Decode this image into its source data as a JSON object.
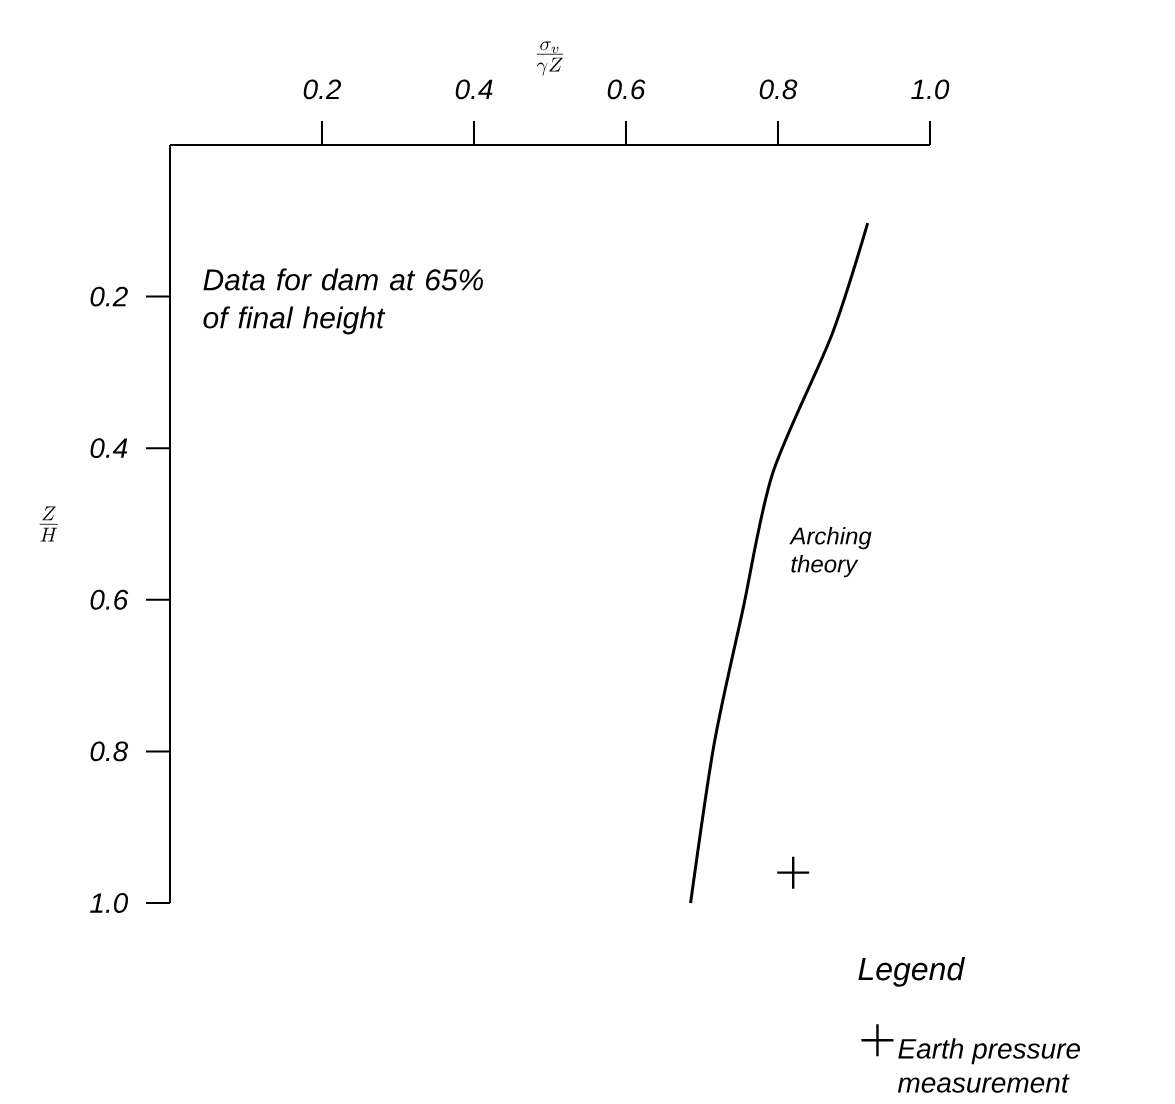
{
  "chart_data": {
    "type": "line",
    "xlabel": "\\frac{\\sigma_v}{\\gamma Z}",
    "ylabel": "\\frac{Z}{H}",
    "xlim": [
      0,
      1.0
    ],
    "ylim": [
      1.0,
      0
    ],
    "xticks": [
      0.2,
      0.4,
      0.6,
      0.8,
      {
        "value": 1.0,
        "label": "1.0"
      }
    ],
    "yticks": [
      0.2,
      0.4,
      0.6,
      0.8,
      {
        "value": 1.0,
        "label": "1.0"
      }
    ],
    "annotations": [
      "Data for dam at 65% of final height"
    ],
    "legend": "bottom right",
    "legend_title": "Legend",
    "series": [
      {
        "name": "Arching theory",
        "color": "#000000",
        "line_style": "solid",
        "marker": "none",
        "x": [
          0.918,
          0.871,
          0.793,
          0.754,
          0.716,
          0.685
        ],
        "values": [
          0.103,
          0.25,
          0.433,
          0.612,
          0.79,
          1.0
        ]
      },
      {
        "type": "scatter",
        "name": "Earth pressure measurement",
        "color": "#000000",
        "marker": "cross",
        "x": [
          0.82
        ],
        "values": [
          0.96
        ]
      }
    ]
  }
}
